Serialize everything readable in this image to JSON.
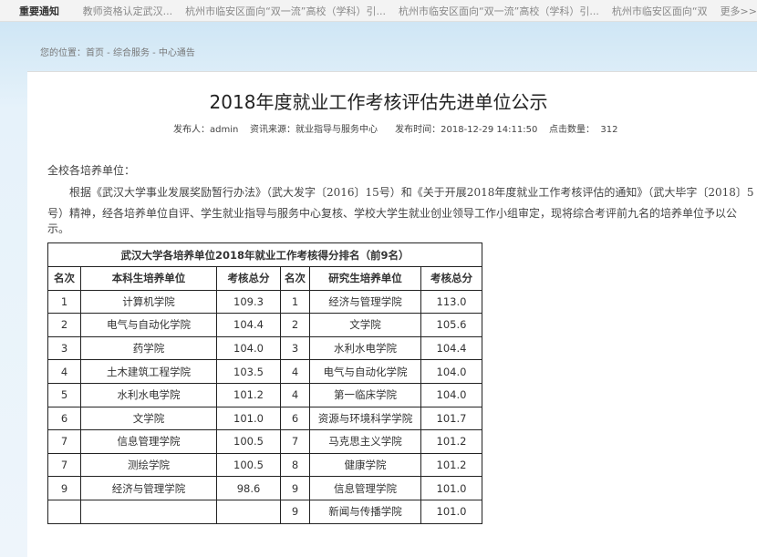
{
  "topbar": {
    "label": "重要通知",
    "items": [
      "教师资格认定武汉...",
      "杭州市临安区面向“双一流”高校（学科）引...",
      "杭州市临安区面向“双一流”高校（学科）引...",
      "杭州市临安区面向“双"
    ],
    "more": "更多>>"
  },
  "breadcrumb": "您的位置：首页 - 综合服务 - 中心通告",
  "article": {
    "title": "2018年度就业工作考核评估先进单位公示",
    "meta": "发布人：admin    资讯来源：就业指导与服务中心      发布时间：2018-12-29 14:11:50    点击数量：  312",
    "salutation": "全校各培养单位：",
    "para1": "根据《武汉大学事业发展奖励暂行办法》（武大发字〔2016〕15号）和《关于开展2018年度就业工作考核评估的通知》（武大毕字〔2018〕5",
    "para2": "号）精神，经各培养单位自评、学生就业指导与服务中心复核、学校大学生就业创业领导工作小组审定，现将综合考评前九名的培养单位予以公示。"
  },
  "table": {
    "caption": "武汉大学各培养单位2018年就业工作考核得分排名（前9名）",
    "headers": [
      "名次",
      "本科生培养单位",
      "考核总分",
      "名次",
      "研究生培养单位",
      "考核总分"
    ],
    "rows": [
      [
        "1",
        "计算机学院",
        "109.3",
        "1",
        "经济与管理学院",
        "113.0"
      ],
      [
        "2",
        "电气与自动化学院",
        "104.4",
        "2",
        "文学院",
        "105.6"
      ],
      [
        "3",
        "药学院",
        "104.0",
        "3",
        "水利水电学院",
        "104.4"
      ],
      [
        "4",
        "土木建筑工程学院",
        "103.5",
        "4",
        "电气与自动化学院",
        "104.0"
      ],
      [
        "5",
        "水利水电学院",
        "101.2",
        "4",
        "第一临床学院",
        "104.0"
      ],
      [
        "6",
        "文学院",
        "101.0",
        "6",
        "资源与环境科学学院",
        "101.7"
      ],
      [
        "7",
        "信息管理学院",
        "100.5",
        "7",
        "马克思主义学院",
        "101.2"
      ],
      [
        "7",
        "测绘学院",
        "100.5",
        "8",
        "健康学院",
        "101.2"
      ],
      [
        "9",
        "经济与管理学院",
        "98.6",
        "9",
        "信息管理学院",
        "101.0"
      ],
      [
        "",
        "",
        "",
        "9",
        "新闻与传播学院",
        "101.0"
      ]
    ]
  }
}
